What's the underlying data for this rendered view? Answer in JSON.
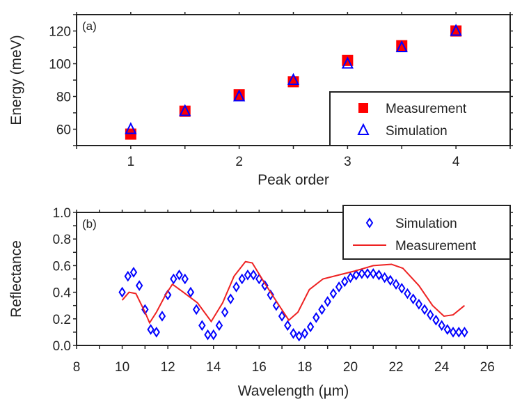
{
  "chart_data": [
    {
      "type": "scatter",
      "panel_label": "(a)",
      "xlabel": "Peak order",
      "ylabel": "Energy (meV)",
      "xlim": [
        0.5,
        4.5
      ],
      "ylim": [
        50,
        130
      ],
      "xticks": [
        1,
        2,
        3,
        4
      ],
      "yticks": [
        60,
        80,
        100,
        120
      ],
      "grid": false,
      "legend_position": "bottom-right",
      "series": [
        {
          "name": "Measurement",
          "marker": "filled-square",
          "color": "#ff0000",
          "x": [
            1,
            1.5,
            2,
            2.5,
            3,
            3.5,
            4
          ],
          "y": [
            57,
            71,
            81,
            89,
            102,
            111,
            120
          ]
        },
        {
          "name": "Simulation",
          "marker": "open-triangle",
          "color": "#0000ff",
          "x": [
            1,
            1.5,
            2,
            2.5,
            3,
            3.5,
            4
          ],
          "y": [
            60,
            71,
            80,
            90,
            100,
            110,
            120
          ]
        }
      ]
    },
    {
      "type": "line",
      "panel_label": "(b)",
      "xlabel": "Wavelength (µm)",
      "ylabel": "Reflectance",
      "xlim": [
        8,
        27
      ],
      "ylim": [
        0,
        1.0
      ],
      "xticks": [
        8,
        10,
        12,
        14,
        16,
        18,
        20,
        22,
        24,
        26
      ],
      "yticks": [
        "0.0",
        "0.2",
        "0.4",
        "0.6",
        "0.8",
        "1.0"
      ],
      "grid": false,
      "legend_position": "top-right",
      "series": [
        {
          "name": "Simulation",
          "marker": "open-diamond",
          "color": "#0000ff",
          "x": [
            10,
            10.25,
            10.5,
            10.75,
            11,
            11.25,
            11.5,
            11.75,
            12,
            12.25,
            12.5,
            12.75,
            13,
            13.25,
            13.5,
            13.75,
            14,
            14.25,
            14.5,
            14.75,
            15,
            15.25,
            15.5,
            15.75,
            16,
            16.25,
            16.5,
            16.75,
            17,
            17.25,
            17.5,
            17.75,
            18,
            18.25,
            18.5,
            18.75,
            19,
            19.25,
            19.5,
            19.75,
            20,
            20.25,
            20.5,
            20.75,
            21,
            21.25,
            21.5,
            21.75,
            22,
            22.25,
            22.5,
            22.75,
            23,
            23.25,
            23.5,
            23.75,
            24,
            24.25,
            24.5,
            24.75,
            25
          ],
          "y": [
            0.4,
            0.52,
            0.55,
            0.45,
            0.27,
            0.12,
            0.1,
            0.22,
            0.38,
            0.5,
            0.53,
            0.5,
            0.4,
            0.27,
            0.15,
            0.08,
            0.08,
            0.15,
            0.25,
            0.35,
            0.44,
            0.5,
            0.53,
            0.53,
            0.5,
            0.45,
            0.38,
            0.3,
            0.22,
            0.15,
            0.09,
            0.07,
            0.09,
            0.14,
            0.21,
            0.27,
            0.33,
            0.39,
            0.44,
            0.48,
            0.51,
            0.53,
            0.54,
            0.54,
            0.54,
            0.53,
            0.51,
            0.49,
            0.46,
            0.43,
            0.39,
            0.35,
            0.31,
            0.27,
            0.23,
            0.19,
            0.15,
            0.12,
            0.1,
            0.1,
            0.1
          ]
        },
        {
          "name": "Measurement",
          "marker": "line",
          "color": "#ee2222",
          "x": [
            10,
            10.3,
            10.6,
            11,
            11.2,
            11.5,
            11.9,
            12.2,
            12.6,
            13.3,
            13.9,
            14.4,
            14.9,
            15.4,
            15.7,
            16.2,
            16.8,
            17.3,
            17.7,
            18.2,
            18.8,
            19.5,
            20.2,
            21,
            21.8,
            22.3,
            23,
            23.6,
            24.1,
            24.5,
            25
          ],
          "y": [
            0.34,
            0.4,
            0.39,
            0.25,
            0.17,
            0.25,
            0.38,
            0.46,
            0.41,
            0.32,
            0.18,
            0.32,
            0.52,
            0.63,
            0.62,
            0.48,
            0.32,
            0.19,
            0.25,
            0.42,
            0.5,
            0.53,
            0.56,
            0.6,
            0.61,
            0.58,
            0.45,
            0.3,
            0.22,
            0.23,
            0.3
          ]
        }
      ]
    }
  ]
}
